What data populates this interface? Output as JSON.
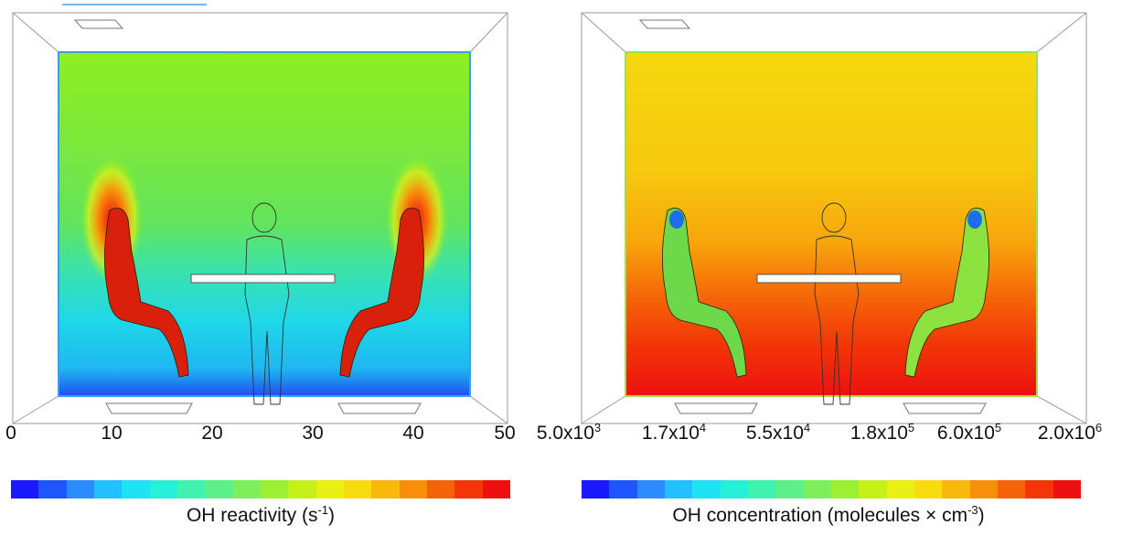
{
  "left_panel": {
    "colorbar": {
      "ticks": [
        "0",
        "10",
        "20",
        "30",
        "40",
        "50"
      ],
      "label_text": "OH reactivity (s",
      "label_exp": "-1",
      "label_tail": ")",
      "colors": [
        "#1a1aff",
        "#1f55ff",
        "#2a8cff",
        "#22c0ff",
        "#1fe3f5",
        "#28f0d8",
        "#3ff2b0",
        "#5cf08a",
        "#7cef5a",
        "#9cf033",
        "#c6f01a",
        "#e8f014",
        "#f8dc10",
        "#f9b80c",
        "#f88f0a",
        "#f56308",
        "#f23608",
        "#ee1010"
      ]
    }
  },
  "right_panel": {
    "colorbar": {
      "ticks": [
        {
          "base": "5.0x10",
          "exp": "3"
        },
        {
          "base": "1.7x10",
          "exp": "4"
        },
        {
          "base": "5.5x10",
          "exp": "4"
        },
        {
          "base": "1.8x10",
          "exp": "5"
        },
        {
          "base": "6.0x10",
          "exp": "5"
        },
        {
          "base": "2.0x10",
          "exp": "6"
        }
      ],
      "label_text": "OH concentration (molecules × cm",
      "label_exp": "-3",
      "label_tail": ")",
      "colors": [
        "#1a1aff",
        "#1f55ff",
        "#2a8cff",
        "#22c0ff",
        "#1fe3f5",
        "#28f0d8",
        "#3ff2b0",
        "#5cf08a",
        "#7cef5a",
        "#9cf033",
        "#c6f01a",
        "#e8f014",
        "#f8dc10",
        "#f9b80c",
        "#f88f0a",
        "#f56308",
        "#f23608",
        "#ee1010"
      ]
    }
  }
}
